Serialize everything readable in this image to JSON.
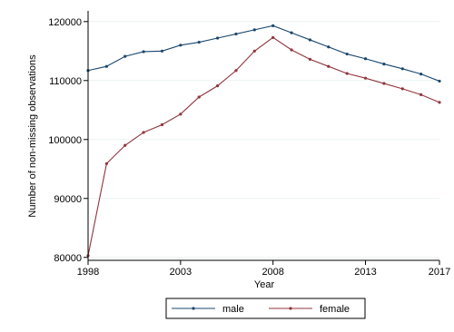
{
  "chart_data": {
    "type": "line",
    "title": "",
    "xlabel": "Year",
    "ylabel": "Number of non-missing observations",
    "x": [
      1998,
      1999,
      2000,
      2001,
      2002,
      2003,
      2004,
      2005,
      2006,
      2007,
      2008,
      2009,
      2010,
      2011,
      2012,
      2013,
      2014,
      2015,
      2016,
      2017
    ],
    "xticks": [
      1998,
      2003,
      2008,
      2013,
      2017
    ],
    "yticks": [
      80000,
      90000,
      100000,
      110000,
      120000
    ],
    "xlim": [
      1998,
      2017
    ],
    "ylim": [
      79500,
      121200
    ],
    "grid": true,
    "legend_position": "bottom",
    "series": [
      {
        "name": "male",
        "color": "#1a476f",
        "values": [
          111700,
          112400,
          114100,
          114900,
          115000,
          116000,
          116500,
          117200,
          117900,
          118600,
          119300,
          118100,
          116900,
          115700,
          114500,
          113700,
          112800,
          112000,
          111100,
          109900
        ]
      },
      {
        "name": "female",
        "color": "#90353b",
        "values": [
          80300,
          95900,
          99000,
          101200,
          102500,
          104300,
          107200,
          109100,
          111700,
          115000,
          117300,
          115200,
          113600,
          112400,
          111200,
          110400,
          109500,
          108600,
          107600,
          106300
        ]
      }
    ]
  }
}
